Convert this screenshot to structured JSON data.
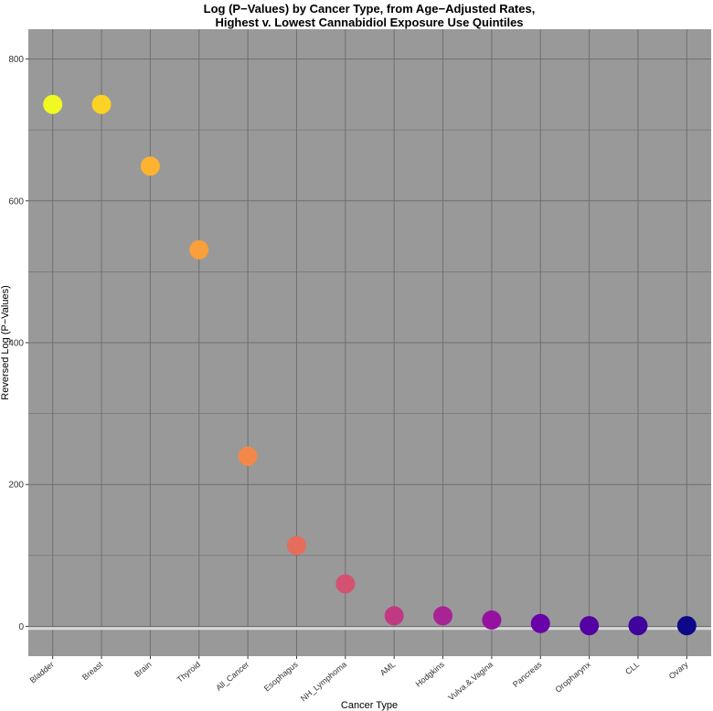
{
  "chart_data": {
    "type": "scatter",
    "title_line1": "Log (P−Values) by Cancer Type, from Age−Adjusted Rates,",
    "title_line2": "Highest v. Lowest Cannabidiol Exposure Use Quintiles",
    "xlabel": "Cancer Type",
    "ylabel": "Reversed Log (P−Values)",
    "ylim": [
      -42,
      842
    ],
    "y_ticks": [
      0,
      200,
      400,
      600,
      800
    ],
    "y_tick_labels": [
      "0",
      "200",
      "400",
      "600",
      "800"
    ],
    "reference_line_y": -3,
    "categories": [
      "Bladder",
      "Breast",
      "Brain",
      "Thyroid",
      "All_Cancer",
      "Esophagus",
      "NH_Lymphoma",
      "AML",
      "Hodgkins",
      "Vulva.&.Vagina",
      "Pancreas",
      "Oropharynx",
      "CLL",
      "Ovary"
    ],
    "values": [
      736,
      736,
      649,
      531,
      240,
      114,
      60,
      15,
      15,
      9,
      4,
      1,
      1,
      1
    ],
    "point_colors": [
      "#F0F921",
      "#FCD225",
      "#FDB32F",
      "#FB9F3A",
      "#F48849",
      "#E66C5C",
      "#D45270",
      "#C03A83",
      "#A92395",
      "#9512A1",
      "#6A00A8",
      "#5402A3",
      "#3E049C",
      "#0D0887"
    ],
    "panel_background": "#999999",
    "grid_color": "#6f6f6f",
    "reference_line_color": "#d9d9d9",
    "grid": true,
    "legend": "none"
  }
}
